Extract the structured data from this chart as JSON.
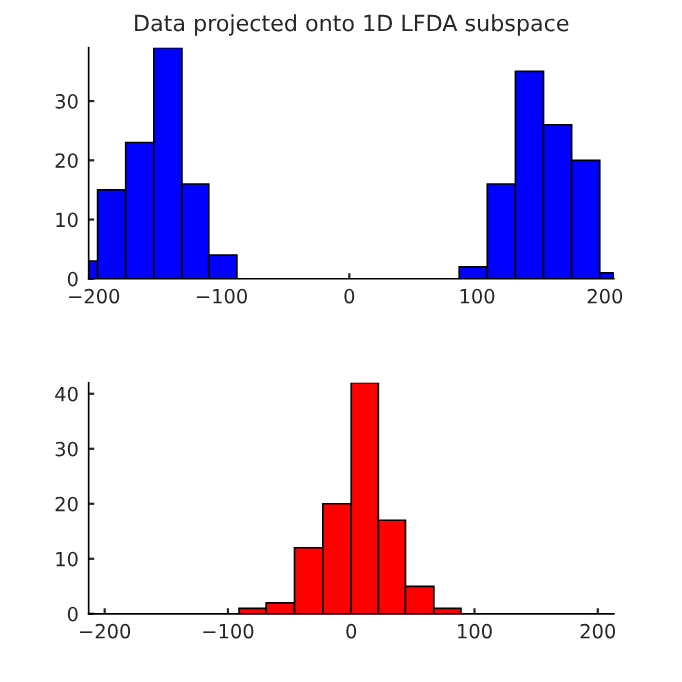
{
  "chart_data": [
    {
      "type": "histogram",
      "title": "Data projected onto 1D LFDA subspace",
      "color": "#0000ff",
      "bins": [
        -204,
        -197,
        -175,
        -153,
        -131,
        -110,
        -88,
        86,
        108,
        130,
        152,
        174,
        196,
        207
      ],
      "values": [
        3,
        15,
        23,
        39,
        16,
        4,
        0,
        2,
        16,
        35,
        26,
        20,
        1
      ],
      "xlim": [
        -204,
        207
      ],
      "ylim": [
        0,
        39
      ],
      "xticks": [
        -200,
        -100,
        0,
        100,
        200
      ],
      "yticks": [
        0,
        10,
        20,
        30
      ],
      "grid": false,
      "legend": false
    },
    {
      "type": "histogram",
      "color": "#ff0000",
      "bins": [
        -91,
        -69,
        -46,
        -23,
        0,
        22,
        44,
        67,
        89
      ],
      "values": [
        1,
        2,
        12,
        20,
        42,
        17,
        5,
        1
      ],
      "xlim": [
        -213,
        213
      ],
      "ylim": [
        0,
        42
      ],
      "xticks": [
        -200,
        -100,
        0,
        100,
        200
      ],
      "yticks": [
        0,
        10,
        20,
        30,
        40
      ],
      "grid": false,
      "legend": false
    }
  ]
}
